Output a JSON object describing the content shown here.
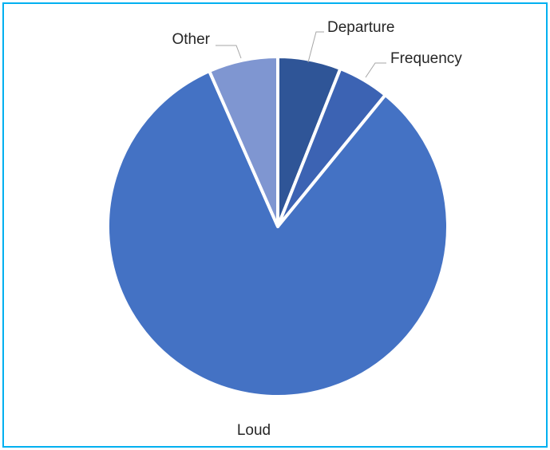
{
  "chart_data": {
    "type": "pie",
    "title": "",
    "slices": [
      {
        "label": "Departure",
        "value": 6.0,
        "color": "#2f5597"
      },
      {
        "label": "Frequency",
        "value": 4.9,
        "color": "#3c63b3"
      },
      {
        "label": "Loud",
        "value": 82.5,
        "color": "#4472c4"
      },
      {
        "label": "Other",
        "value": 6.6,
        "color": "#7f96d1"
      }
    ],
    "legend": "none",
    "data_labels": "category name with leader lines",
    "start_angle_deg": 0,
    "direction": "clockwise"
  },
  "frame": {
    "border_color": "#00b0f0"
  }
}
